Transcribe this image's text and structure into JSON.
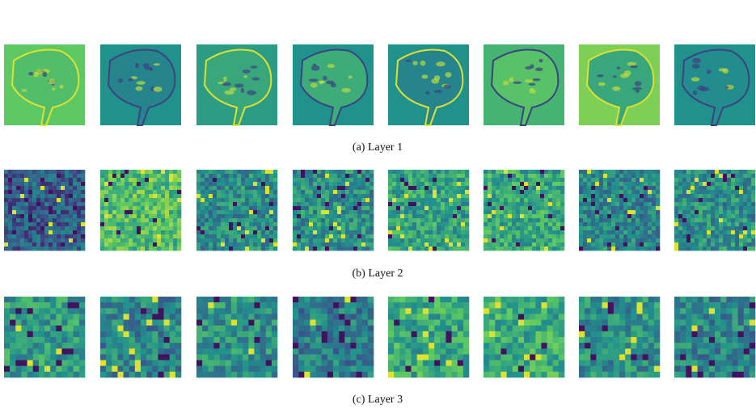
{
  "captions": [
    "(a) Layer 1",
    "(b) Layer 2",
    "(c) Layer 3"
  ]
}
